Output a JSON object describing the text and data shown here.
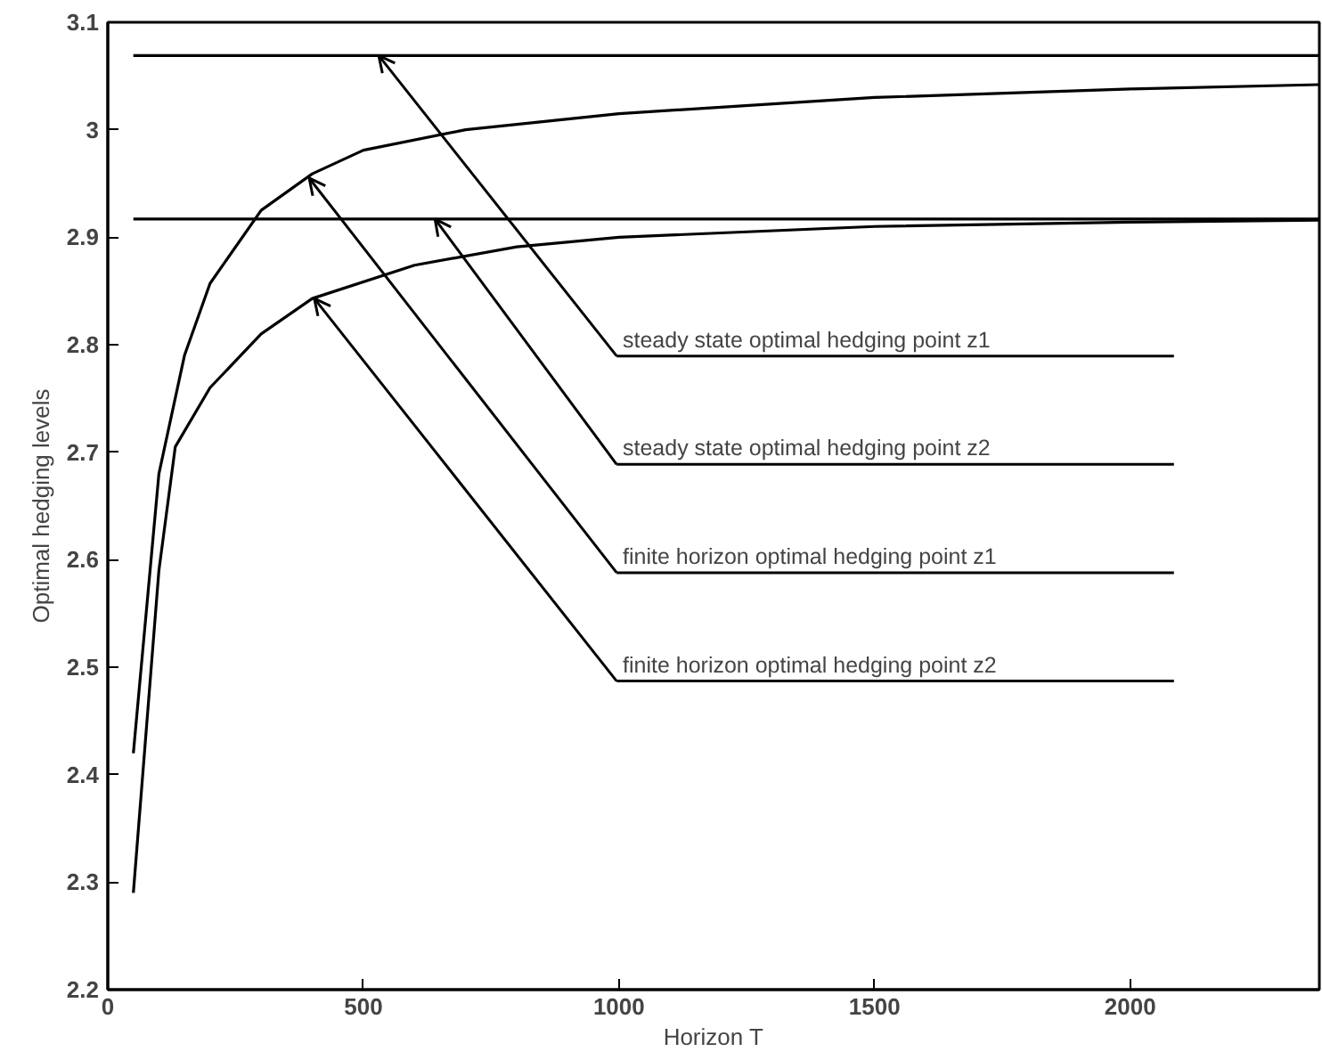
{
  "chart_data": {
    "type": "line",
    "xlabel": "Horizon T",
    "ylabel": "Optimal hedging levels",
    "xlim": [
      0,
      2370
    ],
    "ylim": [
      2.2,
      3.1
    ],
    "xticks": [
      0,
      500,
      1000,
      1500,
      2000
    ],
    "yticks": [
      2.2,
      2.3,
      2.4,
      2.5,
      2.6,
      2.7,
      2.8,
      2.9,
      3,
      3.1
    ],
    "line_style": "solid",
    "series": [
      {
        "color": "#000000",
        "x": [
          50,
          2370
        ],
        "values": [
          3.069,
          3.069
        ]
      },
      {
        "color": "#000000",
        "x": [
          50,
          2370
        ],
        "values": [
          2.917,
          2.917
        ]
      },
      {
        "color": "#000000",
        "x": [
          50,
          100,
          150,
          200,
          300,
          400,
          500,
          700,
          1000,
          1500,
          2000,
          2370
        ],
        "values": [
          2.42,
          2.68,
          2.79,
          2.857,
          2.925,
          2.959,
          2.981,
          3.0,
          3.015,
          3.03,
          3.038,
          3.042
        ]
      },
      {
        "color": "#000000",
        "x": [
          50,
          100,
          132,
          200,
          300,
          400,
          600,
          800,
          1000,
          1500,
          2000,
          2370
        ],
        "values": [
          2.29,
          2.59,
          2.705,
          2.76,
          2.81,
          2.843,
          2.874,
          2.891,
          2.9,
          2.91,
          2.914,
          2.916
        ]
      }
    ],
    "annotations": [
      {
        "text": "steady state optimal hedging point z1",
        "x": 530,
        "y": 3.069
      },
      {
        "text": "steady state optimal hedging point z2",
        "x": 640,
        "y": 2.917
      },
      {
        "text": "finite horizon optimal hedging point z1",
        "x": 394,
        "y": 2.955
      },
      {
        "text": "finite horizon optimal hedging point z2",
        "x": 404,
        "y": 2.843
      }
    ]
  }
}
